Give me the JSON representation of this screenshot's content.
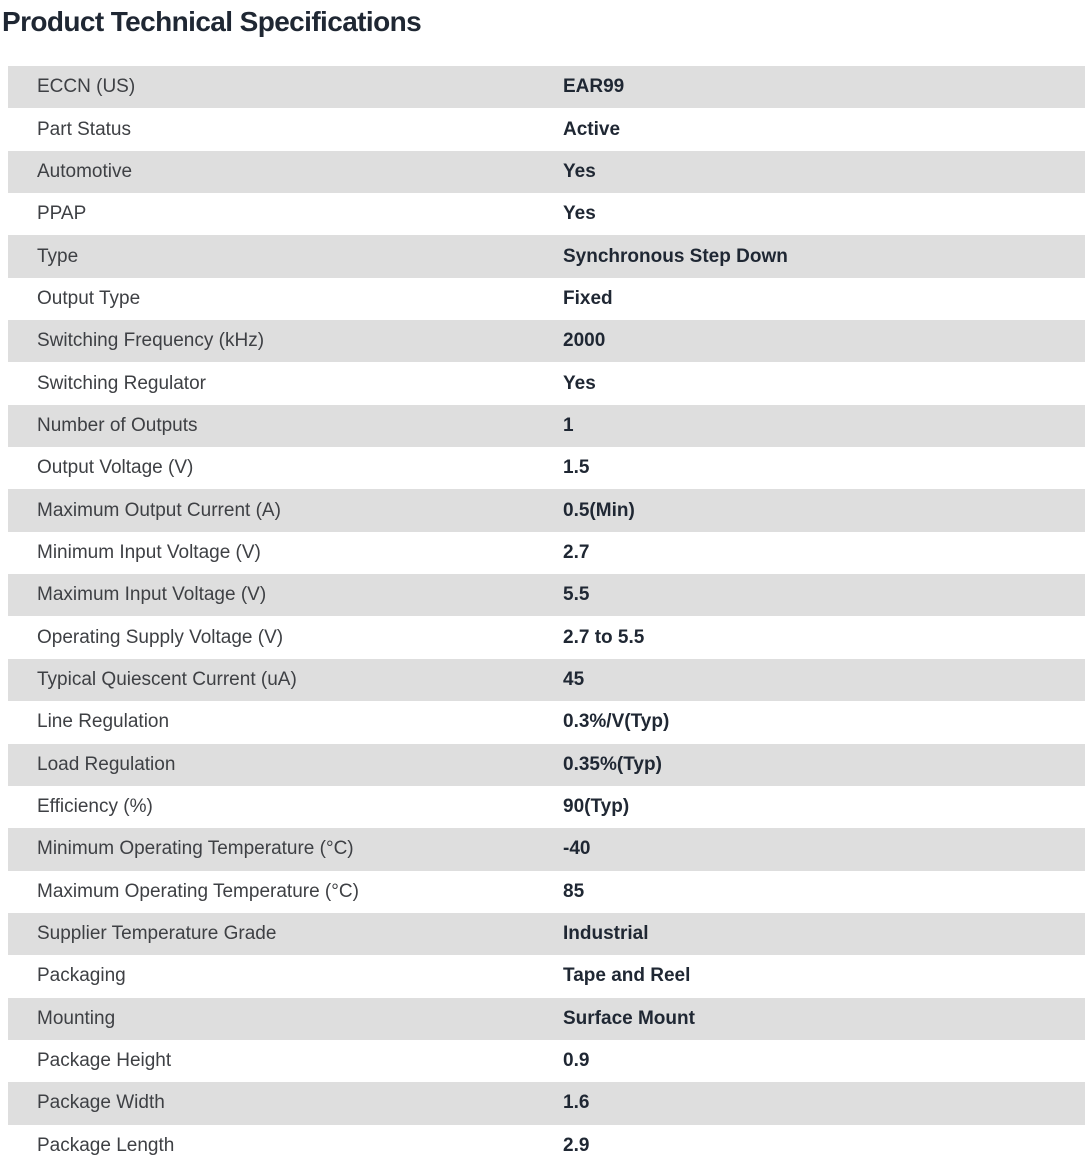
{
  "page": {
    "title": "Product Technical Specifications"
  },
  "colors": {
    "row_stripe_bg": "#dedede",
    "row_plain_bg": "#ffffff",
    "title_color": "#1f2733",
    "label_color": "#3e4044",
    "value_color": "#1f2733"
  },
  "table": {
    "rows": [
      {
        "label": "ECCN (US)",
        "value": "EAR99"
      },
      {
        "label": "Part Status",
        "value": "Active"
      },
      {
        "label": "Automotive",
        "value": "Yes"
      },
      {
        "label": "PPAP",
        "value": "Yes"
      },
      {
        "label": "Type",
        "value": "Synchronous Step Down"
      },
      {
        "label": "Output Type",
        "value": "Fixed"
      },
      {
        "label": "Switching Frequency (kHz)",
        "value": "2000"
      },
      {
        "label": "Switching Regulator",
        "value": "Yes"
      },
      {
        "label": "Number of Outputs",
        "value": "1"
      },
      {
        "label": "Output Voltage (V)",
        "value": "1.5"
      },
      {
        "label": "Maximum Output Current (A)",
        "value": "0.5(Min)"
      },
      {
        "label": "Minimum Input Voltage (V)",
        "value": "2.7"
      },
      {
        "label": "Maximum Input Voltage (V)",
        "value": "5.5"
      },
      {
        "label": "Operating Supply Voltage (V)",
        "value": "2.7 to 5.5"
      },
      {
        "label": "Typical Quiescent Current (uA)",
        "value": "45"
      },
      {
        "label": "Line Regulation",
        "value": "0.3%/V(Typ)"
      },
      {
        "label": "Load Regulation",
        "value": "0.35%(Typ)"
      },
      {
        "label": "Efficiency (%)",
        "value": "90(Typ)"
      },
      {
        "label": "Minimum Operating Temperature (°C)",
        "value": "-40"
      },
      {
        "label": "Maximum Operating Temperature (°C)",
        "value": "85"
      },
      {
        "label": "Supplier Temperature Grade",
        "value": "Industrial"
      },
      {
        "label": "Packaging",
        "value": "Tape and Reel"
      },
      {
        "label": "Mounting",
        "value": "Surface Mount"
      },
      {
        "label": "Package Height",
        "value": "0.9"
      },
      {
        "label": "Package Width",
        "value": "1.6"
      },
      {
        "label": "Package Length",
        "value": "2.9"
      }
    ]
  }
}
